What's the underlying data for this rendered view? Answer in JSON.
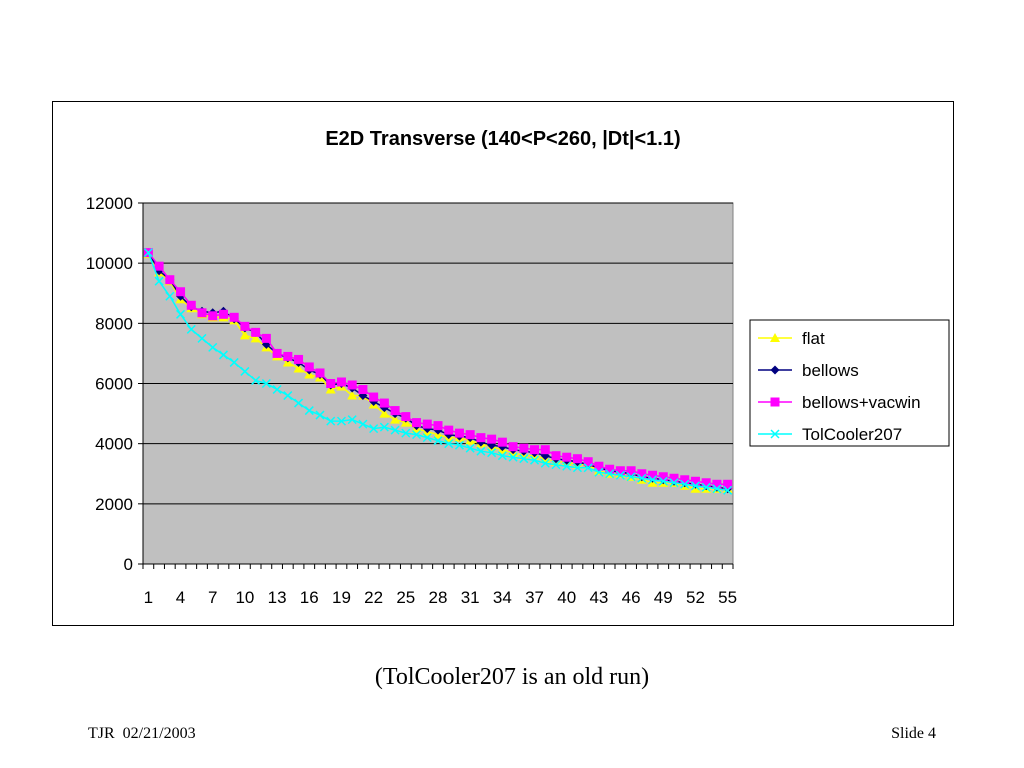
{
  "slide": {
    "caption": "(TolCooler207 is an old run)",
    "footer_left": "TJR  02/21/2003",
    "footer_right": "Slide 4"
  },
  "chart_data": {
    "type": "line",
    "title": "E2D Transverse   (140<P<260, |Dt|<1.1)",
    "xlabel": "",
    "ylabel": "",
    "ylim": [
      0,
      12000
    ],
    "y_ticks": [
      0,
      2000,
      4000,
      6000,
      8000,
      10000,
      12000
    ],
    "x_tick_labels": [
      "1",
      "4",
      "7",
      "10",
      "13",
      "16",
      "19",
      "22",
      "25",
      "28",
      "31",
      "34",
      "37",
      "40",
      "43",
      "46",
      "49",
      "52",
      "55"
    ],
    "x": [
      1,
      2,
      3,
      4,
      5,
      6,
      7,
      8,
      9,
      10,
      11,
      12,
      13,
      14,
      15,
      16,
      17,
      18,
      19,
      20,
      21,
      22,
      23,
      24,
      25,
      26,
      27,
      28,
      29,
      30,
      31,
      32,
      33,
      34,
      35,
      36,
      37,
      38,
      39,
      40,
      41,
      42,
      43,
      44,
      45,
      46,
      47,
      48,
      49,
      50,
      51,
      52,
      53,
      54,
      55
    ],
    "grid": "horizontal",
    "plot_background": "#c0c0c0",
    "legend_position": "right",
    "series": [
      {
        "name": "flat",
        "color": "#ffff00",
        "marker": "triangle",
        "values": [
          10300,
          9700,
          9400,
          8800,
          8500,
          8300,
          8200,
          8200,
          8100,
          7600,
          7500,
          7200,
          6900,
          6700,
          6500,
          6300,
          6200,
          5800,
          5900,
          5600,
          5600,
          5300,
          5000,
          4800,
          4700,
          4500,
          4400,
          4300,
          4200,
          4200,
          4100,
          4000,
          3900,
          3800,
          3700,
          3600,
          3600,
          3500,
          3400,
          3400,
          3300,
          3300,
          3100,
          3000,
          3000,
          2900,
          2800,
          2700,
          2700,
          2700,
          2600,
          2500,
          2500,
          2500,
          2500
        ]
      },
      {
        "name": "bellows",
        "color": "#000080",
        "marker": "diamond",
        "values": [
          10350,
          9750,
          9450,
          8900,
          8550,
          8400,
          8350,
          8400,
          8150,
          7850,
          7700,
          7300,
          7000,
          6850,
          6700,
          6450,
          6300,
          5950,
          6000,
          5850,
          5600,
          5400,
          5200,
          5000,
          4850,
          4600,
          4500,
          4450,
          4300,
          4250,
          4200,
          4050,
          3950,
          3900,
          3800,
          3750,
          3700,
          3600,
          3500,
          3450,
          3400,
          3300,
          3200,
          3100,
          3050,
          3000,
          2900,
          2850,
          2800,
          2750,
          2700,
          2650,
          2600,
          2550,
          2500
        ]
      },
      {
        "name": "bellows+vacwin",
        "color": "#ff00ff",
        "marker": "square",
        "values": [
          10350,
          9900,
          9450,
          9050,
          8600,
          8350,
          8250,
          8300,
          8200,
          7900,
          7700,
          7500,
          7000,
          6900,
          6800,
          6550,
          6350,
          6000,
          6050,
          5950,
          5800,
          5550,
          5350,
          5100,
          4900,
          4700,
          4650,
          4600,
          4450,
          4350,
          4300,
          4200,
          4150,
          4050,
          3900,
          3850,
          3800,
          3800,
          3600,
          3550,
          3500,
          3400,
          3250,
          3150,
          3100,
          3100,
          3000,
          2950,
          2900,
          2850,
          2800,
          2750,
          2700,
          2650,
          2650
        ]
      },
      {
        "name": "TolCooler207",
        "color": "#00ffff",
        "marker": "x",
        "values": [
          10350,
          9400,
          8900,
          8300,
          7800,
          7500,
          7200,
          6950,
          6700,
          6400,
          6100,
          6000,
          5800,
          5600,
          5350,
          5100,
          4950,
          4750,
          4750,
          4800,
          4650,
          4500,
          4550,
          4450,
          4350,
          4300,
          4200,
          4100,
          4000,
          3950,
          3850,
          3750,
          3700,
          3600,
          3550,
          3500,
          3450,
          3350,
          3300,
          3250,
          3200,
          3200,
          3050,
          3000,
          2950,
          2900,
          2850,
          2800,
          2750,
          2700,
          2650,
          2600,
          2550,
          2500,
          2450
        ]
      }
    ]
  }
}
